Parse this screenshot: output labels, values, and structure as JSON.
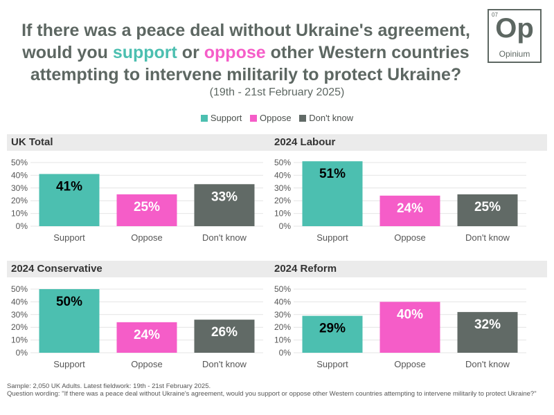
{
  "title": {
    "line1": "If there was a peace deal without Ukraine's agreement,",
    "line2_pre": "would you ",
    "line2_support": "support",
    "line2_mid": " or ",
    "line2_oppose": "oppose",
    "line2_post": " other Western countries",
    "line3": "attempting to intervene militarily to protect Ukraine?"
  },
  "subtitle": "(19th - 21st February 2025)",
  "logo": {
    "number": "07",
    "mark": "Op",
    "word": "Opinium"
  },
  "colors": {
    "support": "#4cbfb0",
    "oppose": "#f55dc8",
    "dont_know": "#616a66",
    "title": "#5d6762"
  },
  "chart_data": [
    {
      "type": "bar",
      "title": "UK Total",
      "categories": [
        "Support",
        "Oppose",
        "Don't know"
      ],
      "values": [
        41,
        25,
        33
      ],
      "value_labels": [
        "41%",
        "25%",
        "33%"
      ],
      "ylim": [
        0,
        50
      ],
      "yticks": [
        "0%",
        "10%",
        "20%",
        "30%",
        "40%",
        "50%"
      ]
    },
    {
      "type": "bar",
      "title": "2024 Labour",
      "categories": [
        "Support",
        "Oppose",
        "Don't know"
      ],
      "values": [
        51,
        24,
        25
      ],
      "value_labels": [
        "51%",
        "24%",
        "25%"
      ],
      "ylim": [
        0,
        50
      ],
      "yticks": [
        "0%",
        "10%",
        "20%",
        "30%",
        "40%",
        "50%"
      ]
    },
    {
      "type": "bar",
      "title": "2024 Conservative",
      "categories": [
        "Support",
        "Oppose",
        "Don't know"
      ],
      "values": [
        50,
        24,
        26
      ],
      "value_labels": [
        "50%",
        "24%",
        "26%"
      ],
      "ylim": [
        0,
        50
      ],
      "yticks": [
        "0%",
        "10%",
        "20%",
        "30%",
        "40%",
        "50%"
      ]
    },
    {
      "type": "bar",
      "title": "2024 Reform",
      "categories": [
        "Support",
        "Oppose",
        "Don't know"
      ],
      "values": [
        29,
        40,
        32
      ],
      "value_labels": [
        "29%",
        "40%",
        "32%"
      ],
      "ylim": [
        0,
        50
      ],
      "yticks": [
        "0%",
        "10%",
        "20%",
        "30%",
        "40%",
        "50%"
      ]
    }
  ],
  "legend": [
    "Support",
    "Oppose",
    "Don't know"
  ],
  "footer": {
    "sample": "Sample: 2,050 UK Adults. Latest fieldwork: 19th - 21st February 2025.",
    "wording": "Question wording: \"If there was a peace deal without Ukraine's agreement, would you support or oppose other Western countries attempting to intervene militarily to protect Ukraine?\""
  }
}
